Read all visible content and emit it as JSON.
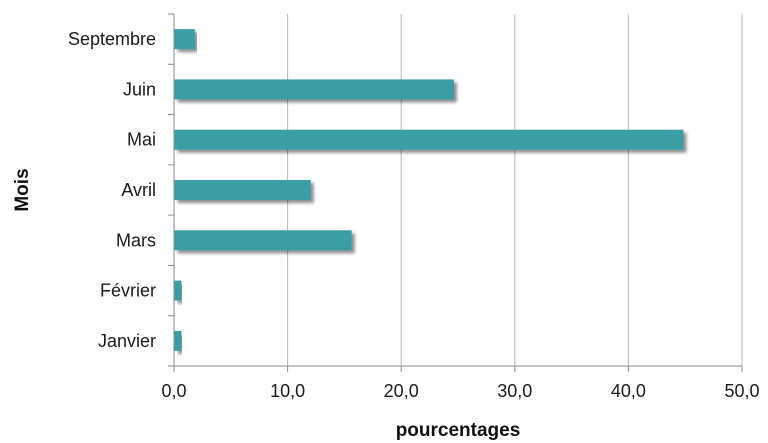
{
  "chart_data": {
    "type": "bar",
    "orientation": "horizontal",
    "categories": [
      "Janvier",
      "Février",
      "Mars",
      "Avril",
      "Mai",
      "Juin",
      "Septembre"
    ],
    "values": [
      0.6,
      0.6,
      15.6,
      12.0,
      44.8,
      24.6,
      1.8
    ],
    "xlabel": "pourcentages",
    "ylabel": "Mois",
    "xlim": [
      0,
      50
    ],
    "xticks": [
      0,
      10,
      20,
      30,
      40,
      50
    ],
    "xtick_labels": [
      "0,0",
      "10,0",
      "20,0",
      "30,0",
      "40,0",
      "50,0"
    ],
    "grid": "vertical",
    "legend": "none",
    "bar_color": "#3a9ea5"
  }
}
